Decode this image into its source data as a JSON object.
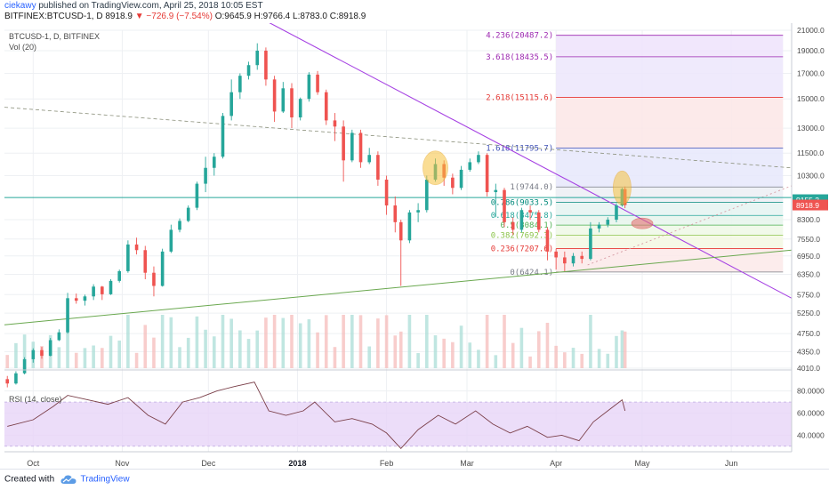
{
  "header": {
    "author": "ciekawy",
    "published_text": "published on TradingView.com, April 25, 2018 10:05 EST",
    "symbol": "BITFINEX:BTCUSD-1, D",
    "last": "8918.9",
    "change": "−726.9 (−7.54%)",
    "open": "O:9645.9",
    "high": "H:9766.4",
    "low": "L:8783.0",
    "close": "C:8918.9"
  },
  "footer": {
    "created_with": "Created with",
    "brand": "TradingView"
  },
  "colors": {
    "up": "#26a69a",
    "down": "#ef5350",
    "trend": "#a642e3",
    "support": "#6aa84f",
    "highlight": "#f6c23e",
    "red_marker": "#e57373",
    "rsi": "#7a3f49",
    "rsi_band": "#e7d4f7",
    "price_tag_green": "#26a69a",
    "price_tag_red": "#ef5350"
  },
  "chart_data": [
    {
      "type": "candlestick",
      "legend": [
        "BTCUSD-1, D, BITFINEX",
        "Vol (20)"
      ],
      "x_ticks": [
        "Oct",
        "Nov",
        "Dec",
        "2018",
        "Feb",
        "Mar",
        "Apr",
        "May",
        "Jun"
      ],
      "y_ticks": [
        "21000.0",
        "19000.0",
        "17000.0",
        "15000.0",
        "13000.0",
        "11500.0",
        "10300.0",
        "9155.2",
        "8918.9",
        "8300.0",
        "7550.0",
        "6950.0",
        "6350.0",
        "5750.0",
        "5250.0",
        "4750.0",
        "4350.0",
        "4010.0"
      ],
      "y_scale": "log",
      "ylim": [
        4010,
        21000
      ],
      "x_range": [
        "2017-09-21",
        "2018-06-22"
      ],
      "price_tags": [
        {
          "text": "9155.2",
          "value": 9155.2,
          "color": "green"
        },
        {
          "text": "8918.9",
          "value": 8918.9,
          "color": "red"
        }
      ],
      "fib_levels": [
        {
          "label": "4.236(20487.2)",
          "value": 20487.2,
          "color": "#9c27b0"
        },
        {
          "label": "3.618(18435.5)",
          "value": 18435.5,
          "color": "#9c27b0"
        },
        {
          "label": "2.618(15115.6)",
          "value": 15115.6,
          "color": "#e53935"
        },
        {
          "label": "1.618(11795.7)",
          "value": 11795.7,
          "color": "#3f51b5"
        },
        {
          "label": "1(9744.0)",
          "value": 9744.0,
          "color": "#787b86"
        },
        {
          "label": "0.786(9033.5)",
          "value": 9033.5,
          "color": "#00897b"
        },
        {
          "label": "0.618(8475.8)",
          "value": 8475.8,
          "color": "#26a69a"
        },
        {
          "label": "0.5(8084.1)",
          "value": 8084.1,
          "color": "#4caf50"
        },
        {
          "label": "0.382(7692.3)",
          "value": 7692.3,
          "color": "#8bc34a"
        },
        {
          "label": "0.236(7207.6)",
          "value": 7207.6,
          "color": "#e53935"
        },
        {
          "label": "0(6424.1)",
          "value": 6424.1,
          "color": "#787b86"
        }
      ],
      "fib_span": [
        "2018-04-01",
        "2018-06-19"
      ],
      "candles": [
        [
          "2017-09-22",
          3800,
          3860,
          3650,
          3720
        ],
        [
          "2017-09-25",
          3720,
          3950,
          3700,
          3910
        ],
        [
          "2017-09-28",
          3910,
          4230,
          3890,
          4190
        ],
        [
          "2017-10-01",
          4190,
          4420,
          4120,
          4380
        ],
        [
          "2017-10-04",
          4380,
          4450,
          4200,
          4260
        ],
        [
          "2017-10-07",
          4260,
          4650,
          4250,
          4600
        ],
        [
          "2017-10-10",
          4600,
          4850,
          4580,
          4780
        ],
        [
          "2017-10-13",
          4780,
          5800,
          4750,
          5650
        ],
        [
          "2017-10-16",
          5650,
          5780,
          5500,
          5580
        ],
        [
          "2017-10-19",
          5580,
          5750,
          5450,
          5700
        ],
        [
          "2017-10-22",
          5700,
          6050,
          5600,
          5980
        ],
        [
          "2017-10-25",
          5980,
          6000,
          5600,
          5760
        ],
        [
          "2017-10-28",
          5760,
          6200,
          5740,
          6150
        ],
        [
          "2017-10-31",
          6150,
          6500,
          6100,
          6450
        ],
        [
          "2017-11-03",
          6450,
          7500,
          6400,
          7350
        ],
        [
          "2017-11-06",
          7350,
          7600,
          7000,
          7150
        ],
        [
          "2017-11-09",
          7150,
          7300,
          6200,
          6400
        ],
        [
          "2017-11-12",
          6400,
          6600,
          5700,
          6000
        ],
        [
          "2017-11-15",
          6000,
          7200,
          5980,
          7100
        ],
        [
          "2017-11-18",
          7100,
          8100,
          7050,
          7900
        ],
        [
          "2017-11-21",
          7900,
          8350,
          7800,
          8250
        ],
        [
          "2017-11-24",
          8250,
          8900,
          8200,
          8800
        ],
        [
          "2017-11-27",
          8800,
          10000,
          8700,
          9900
        ],
        [
          "2017-11-30",
          9900,
          11300,
          9500,
          10700
        ],
        [
          "2017-12-03",
          10700,
          11500,
          10300,
          11300
        ],
        [
          "2017-12-06",
          11300,
          14000,
          11200,
          13800
        ],
        [
          "2017-12-09",
          13800,
          16500,
          13500,
          15500
        ],
        [
          "2017-12-12",
          15500,
          17000,
          15000,
          16800
        ],
        [
          "2017-12-15",
          16800,
          18000,
          16500,
          17700
        ],
        [
          "2017-12-18",
          17700,
          19700,
          17300,
          19000
        ],
        [
          "2017-12-21",
          19000,
          19300,
          16000,
          16500
        ],
        [
          "2017-12-24",
          16500,
          16800,
          13400,
          14100
        ],
        [
          "2017-12-27",
          14100,
          16300,
          14000,
          15800
        ],
        [
          "2017-12-30",
          15800,
          16200,
          13000,
          13700
        ],
        [
          "2018-01-02",
          13700,
          15100,
          13500,
          15000
        ],
        [
          "2018-01-05",
          15000,
          17100,
          14800,
          16900
        ],
        [
          "2018-01-08",
          16900,
          17200,
          15300,
          15500
        ],
        [
          "2018-01-11",
          15500,
          15700,
          13200,
          13500
        ],
        [
          "2018-01-14",
          13500,
          14000,
          12200,
          13100
        ],
        [
          "2018-01-17",
          13100,
          13500,
          10000,
          11100
        ],
        [
          "2018-01-20",
          11100,
          12900,
          11000,
          12700
        ],
        [
          "2018-01-23",
          12700,
          12900,
          10700,
          11000
        ],
        [
          "2018-01-26",
          11000,
          11800,
          10900,
          11400
        ],
        [
          "2018-01-29",
          11400,
          11600,
          9800,
          10100
        ],
        [
          "2018-02-01",
          10100,
          10300,
          8500,
          8900
        ],
        [
          "2018-02-04",
          8900,
          9300,
          7800,
          8200
        ],
        [
          "2018-02-06",
          8200,
          8300,
          6000,
          7500
        ],
        [
          "2018-02-09",
          7500,
          8700,
          7400,
          8600
        ],
        [
          "2018-02-12",
          8600,
          9000,
          8200,
          8700
        ],
        [
          "2018-02-15",
          8700,
          10300,
          8600,
          10100
        ],
        [
          "2018-02-18",
          10100,
          11200,
          10000,
          10900
        ],
        [
          "2018-02-21",
          10900,
          11100,
          9800,
          10200
        ],
        [
          "2018-02-24",
          10200,
          10400,
          9400,
          9700
        ],
        [
          "2018-02-27",
          9700,
          10800,
          9600,
          10600
        ],
        [
          "2018-03-02",
          10600,
          11200,
          10500,
          11000
        ],
        [
          "2018-03-05",
          11000,
          11600,
          10900,
          11400
        ],
        [
          "2018-03-08",
          11400,
          11500,
          9300,
          9500
        ],
        [
          "2018-03-11",
          9500,
          9900,
          8400,
          9600
        ],
        [
          "2018-03-14",
          9600,
          9700,
          8000,
          8200
        ],
        [
          "2018-03-17",
          8200,
          8400,
          7700,
          7900
        ],
        [
          "2018-03-20",
          7900,
          8800,
          7800,
          8700
        ],
        [
          "2018-03-23",
          8700,
          8900,
          8300,
          8600
        ],
        [
          "2018-03-26",
          8600,
          8700,
          7800,
          7900
        ],
        [
          "2018-03-29",
          7900,
          8000,
          6800,
          7100
        ],
        [
          "2018-04-01",
          7100,
          7200,
          6500,
          6900
        ],
        [
          "2018-04-04",
          6900,
          7100,
          6450,
          6700
        ],
        [
          "2018-04-07",
          6700,
          7050,
          6600,
          6950
        ],
        [
          "2018-04-10",
          6950,
          7100,
          6700,
          6850
        ],
        [
          "2018-04-13",
          6850,
          8200,
          6800,
          7950
        ],
        [
          "2018-04-16",
          7950,
          8200,
          7800,
          8100
        ],
        [
          "2018-04-19",
          8100,
          8400,
          8000,
          8300
        ],
        [
          "2018-04-22",
          8300,
          9000,
          8200,
          8900
        ],
        [
          "2018-04-24",
          8900,
          9700,
          8850,
          9645.9
        ],
        [
          "2018-04-25",
          9645.9,
          9766.4,
          8783.0,
          8918.9
        ]
      ],
      "volume_scale": 10
    },
    {
      "type": "line",
      "title": "RSI (14, close)",
      "y_ticks": [
        "80.0000",
        "60.0000",
        "40.0000"
      ],
      "ylim": [
        25,
        95
      ],
      "band": [
        30,
        70
      ],
      "series": [
        {
          "name": "RSI",
          "x": [
            "2017-09-22",
            "2017-10-01",
            "2017-10-08",
            "2017-10-13",
            "2017-10-20",
            "2017-10-27",
            "2017-11-03",
            "2017-11-10",
            "2017-11-16",
            "2017-11-22",
            "2017-11-28",
            "2017-12-04",
            "2017-12-10",
            "2017-12-17",
            "2017-12-22",
            "2017-12-28",
            "2018-01-03",
            "2018-01-07",
            "2018-01-14",
            "2018-01-20",
            "2018-01-27",
            "2018-02-01",
            "2018-02-06",
            "2018-02-12",
            "2018-02-19",
            "2018-02-25",
            "2018-03-04",
            "2018-03-10",
            "2018-03-16",
            "2018-03-22",
            "2018-03-29",
            "2018-04-03",
            "2018-04-09",
            "2018-04-14",
            "2018-04-20",
            "2018-04-24",
            "2018-04-25"
          ],
          "values": [
            48,
            54,
            66,
            76,
            72,
            68,
            74,
            58,
            50,
            70,
            74,
            80,
            84,
            88,
            62,
            58,
            62,
            70,
            52,
            55,
            50,
            42,
            28,
            45,
            58,
            50,
            62,
            50,
            42,
            48,
            38,
            40,
            35,
            52,
            64,
            72,
            62
          ]
        }
      ]
    }
  ]
}
